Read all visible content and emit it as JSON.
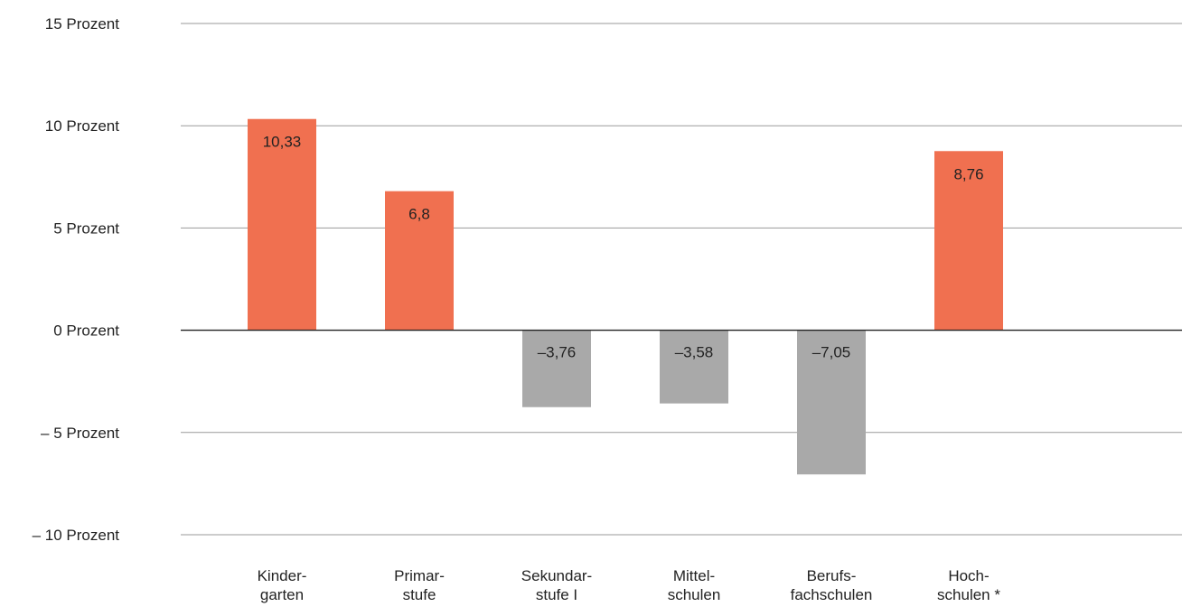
{
  "chart_data": {
    "type": "bar",
    "categories": [
      [
        "Kinder-",
        "garten"
      ],
      [
        "Primar-",
        "stufe"
      ],
      [
        "Sekundar-",
        "stufe I"
      ],
      [
        "Mittel-",
        "schulen"
      ],
      [
        "Berufs-",
        "fachschulen"
      ],
      [
        "Hoch-",
        "schulen *"
      ]
    ],
    "values": [
      10.33,
      6.8,
      -3.76,
      -3.58,
      -7.05,
      8.76
    ],
    "value_labels": [
      "10,33",
      "6,8",
      "–3,76",
      "–3,58",
      "–7,05",
      "8,76"
    ],
    "y_ticks": [
      {
        "value": 15,
        "label": "15 Prozent"
      },
      {
        "value": 10,
        "label": "10 Prozent"
      },
      {
        "value": 5,
        "label": "5 Prozent"
      },
      {
        "value": 0,
        "label": "0 Prozent"
      },
      {
        "value": -5,
        "label": "– 5 Prozent"
      },
      {
        "value": -10,
        "label": "– 10 Prozent"
      }
    ],
    "ylim": [
      -10,
      15
    ],
    "grid": true,
    "colors": {
      "positive": "#f07050",
      "negative": "#a9a9a9"
    }
  }
}
